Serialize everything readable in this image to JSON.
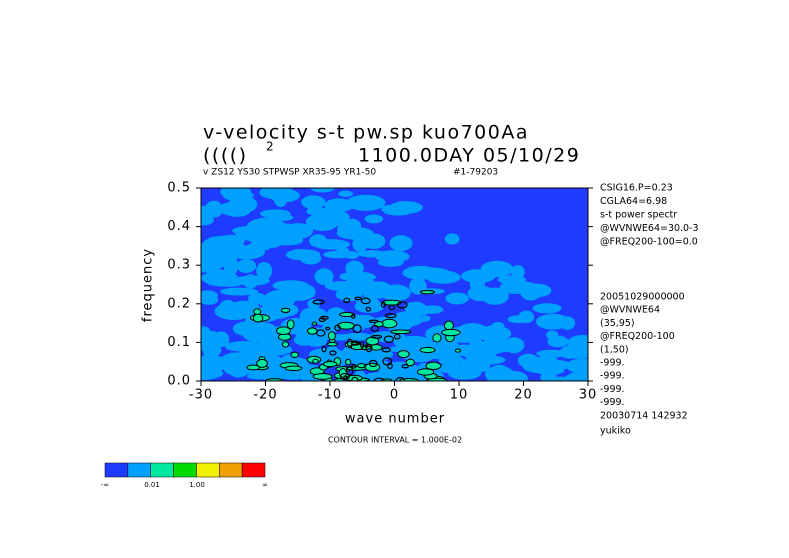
{
  "chart_data": {
    "type": "contour",
    "title": "v-velocity s-t pw.sp  kuo700Aa",
    "subtitle_prefix": "(((()",
    "subtitle_sup": "2",
    "subtitle": "1100.0DAY 05/10/29",
    "info_left": "v ZS12 YS30 STPWSP XR35-95 YR1-50",
    "info_right": "#1-79203",
    "xlabel": "wave number",
    "ylabel": "frequency",
    "xlim": [
      -30,
      30
    ],
    "ylim": [
      0,
      0.5
    ],
    "xticks": [
      -30,
      -20,
      -10,
      0,
      10,
      20,
      30
    ],
    "yticks": [
      {
        "value": 0,
        "label": "0.0"
      },
      0.1,
      0.2,
      0.3,
      0.4,
      0.5
    ],
    "contour_interval": "CONTOUR INTERVAL = 1.000E-02",
    "colorbar_colors": [
      "#1e3cff",
      "#00a0ff",
      "#00e8a0",
      "#00dc00",
      "#f0f000",
      "#f0a000",
      "#ff0000"
    ],
    "colorbar_labels": [
      "-∞",
      "0.01",
      "1.00",
      "∞"
    ],
    "notes_top": [
      "CSIG16.P=0.23",
      "CGLA64=6.98",
      "s-t power spectr",
      "@WVNWE64=30.0-3",
      "@FREQ200-100=0.0"
    ],
    "notes_bottom": [
      "20051029000000",
      "@WVNWE64",
      "(35,95)",
      "@FREQ200-100",
      "(1,50)",
      "-999.",
      "-999.",
      "-999.",
      "-999.",
      "20030714 142932",
      "yukiko"
    ]
  }
}
